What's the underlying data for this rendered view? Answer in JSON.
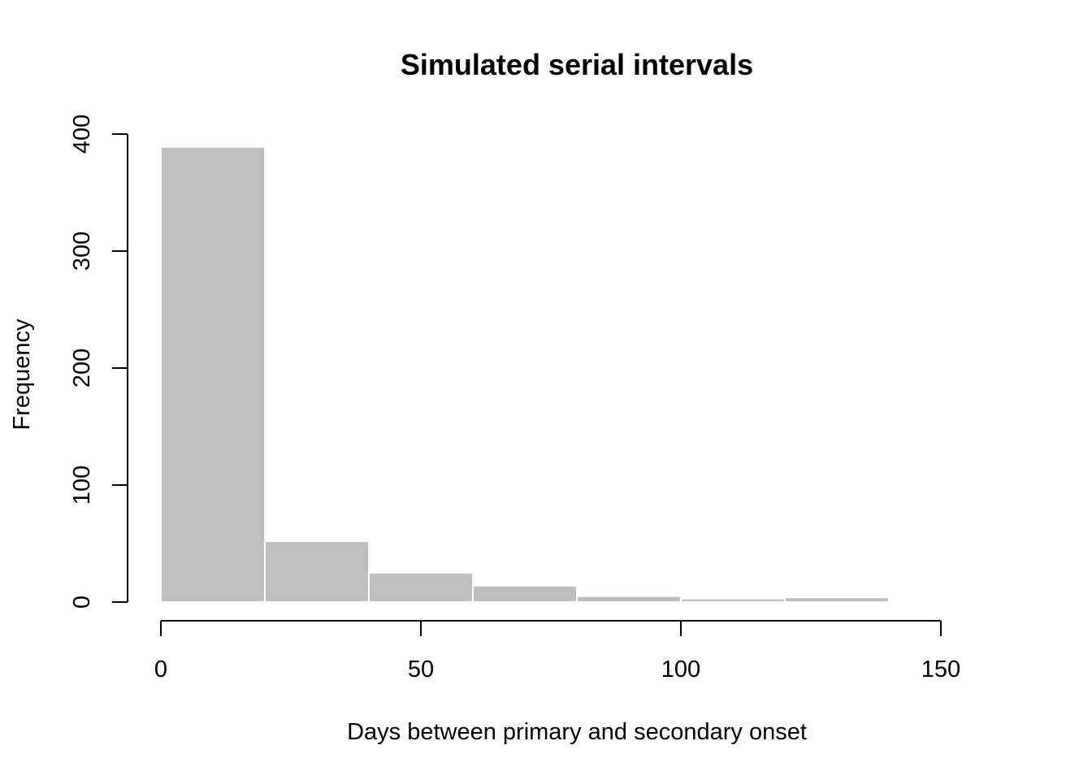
{
  "chart_data": {
    "type": "bar",
    "title": "Simulated serial intervals",
    "xlabel": "Days between primary and secondary onset",
    "ylabel": "Frequency",
    "xlim": [
      0,
      150
    ],
    "ylim": [
      0,
      400
    ],
    "x_ticks": [
      0,
      50,
      100,
      150
    ],
    "y_ticks": [
      0,
      100,
      200,
      300,
      400
    ],
    "bins": [
      {
        "start": 0,
        "end": 20,
        "count": 389
      },
      {
        "start": 20,
        "end": 40,
        "count": 52
      },
      {
        "start": 40,
        "end": 60,
        "count": 25
      },
      {
        "start": 60,
        "end": 80,
        "count": 14
      },
      {
        "start": 80,
        "end": 100,
        "count": 5
      },
      {
        "start": 100,
        "end": 120,
        "count": 3
      },
      {
        "start": 120,
        "end": 140,
        "count": 4
      }
    ],
    "bar_color": "#bebebe",
    "grid": false,
    "legend": "none"
  }
}
